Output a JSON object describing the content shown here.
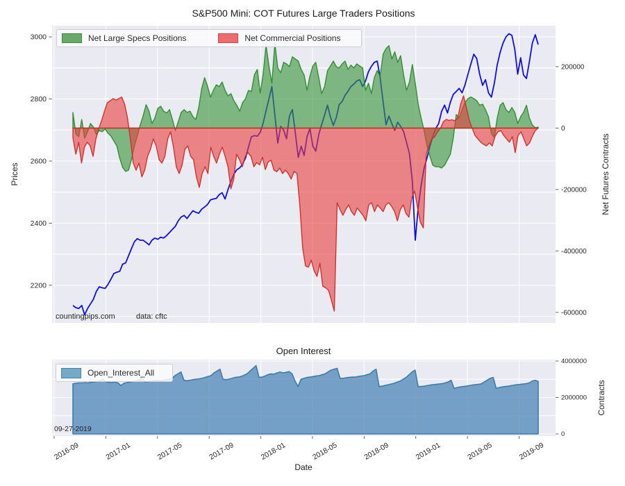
{
  "colors": {
    "plot_bg": "#eaeaf2",
    "grid": "#ffffff",
    "text": "#262626",
    "price_line": "#0d0de3",
    "specs_fill": "rgba(60,150,60,0.62)",
    "specs_edge": "rgba(44,138,44,0.95)",
    "specs_swatch": "#69a869",
    "specs_swatch_edge": "#3c8c3c",
    "comm_fill": "rgba(232,62,62,0.60)",
    "comm_edge": "rgba(206,44,36,0.95)",
    "comm_swatch": "#ee6b6b",
    "comm_swatch_edge": "#cc4848",
    "oi_fill": "rgba(70,130,180,0.72)",
    "oi_edge": "#3d7ca8",
    "oi_swatch": "#74a9c8",
    "oi_swatch_edge": "#4881a8"
  },
  "x_axis": {
    "label": "Date",
    "tick_labels": [
      "2016-09",
      "2017-01",
      "2017-05",
      "2017-09",
      "2018-01",
      "2018-05",
      "2018-09",
      "2019-01",
      "2019-05",
      "2019-09"
    ]
  },
  "chart_data": [
    {
      "type": "line+area",
      "title": "S&P500 Mini: COT Futures Large Traders Positions",
      "ylabel_left": "Prices",
      "ylabel_right": "Net Futures Contracts",
      "watermark": "countingpips.com",
      "source_note": "data: cftc",
      "grid": true,
      "legend_position": "upper left",
      "left_ticks": [
        {
          "v": 3000,
          "label": "3000"
        },
        {
          "v": 2800,
          "label": "2800"
        },
        {
          "v": 2600,
          "label": "2600"
        },
        {
          "v": 2400,
          "label": "2400"
        },
        {
          "v": 2200,
          "label": "2200"
        }
      ],
      "right_ticks": [
        {
          "v": 200000,
          "label": "200000"
        },
        {
          "v": 0,
          "label": "0"
        },
        {
          "v": -200000,
          "label": "-200000"
        },
        {
          "v": -400000,
          "label": "-400000"
        },
        {
          "v": -600000,
          "label": "-600000"
        }
      ],
      "yaxis_left_range": [
        2079,
        3036
      ],
      "yaxis_right_range": [
        -634000,
        333300
      ],
      "legend": [
        {
          "label": "Net Large Specs Positions"
        },
        {
          "label": "Net Commercial Positions"
        }
      ],
      "series": [
        {
          "name": "Prices",
          "type": "line",
          "axis": "left",
          "values": [
            2135,
            2128,
            2125,
            2135,
            2105,
            2125,
            2140,
            2155,
            2180,
            2195,
            2192,
            2190,
            2203,
            2220,
            2238,
            2242,
            2245,
            2268,
            2272,
            2295,
            2318,
            2340,
            2350,
            2345,
            2345,
            2338,
            2330,
            2345,
            2352,
            2348,
            2355,
            2352,
            2360,
            2370,
            2380,
            2390,
            2408,
            2420,
            2425,
            2415,
            2428,
            2440,
            2435,
            2432,
            2445,
            2452,
            2460,
            2475,
            2478,
            2480,
            2492,
            2498,
            2478,
            2508,
            2535,
            2558,
            2572,
            2578,
            2590,
            2610,
            2645,
            2678,
            2682,
            2680,
            2692,
            2722,
            2762,
            2800,
            2840,
            2748,
            2658,
            2712,
            2700,
            2672,
            2745,
            2766,
            2690,
            2612,
            2648,
            2618,
            2678,
            2705,
            2648,
            2632,
            2685,
            2718,
            2748,
            2780,
            2742,
            2715,
            2740,
            2782,
            2792,
            2812,
            2825,
            2840,
            2848,
            2858,
            2862,
            2840,
            2858,
            2888,
            2905,
            2918,
            2922,
            2869,
            2790,
            2717,
            2745,
            2720,
            2699,
            2725,
            2712,
            2695,
            2660,
            2624,
            2534,
            2345,
            2450,
            2521,
            2577,
            2610,
            2648,
            2680,
            2705,
            2721,
            2760,
            2780,
            2755,
            2790,
            2815,
            2824,
            2834,
            2820,
            2845,
            2880,
            2913,
            2944,
            2930,
            2880,
            2844,
            2862,
            2820,
            2806,
            2850,
            2910,
            2950,
            2980,
            3000,
            3010,
            3005,
            2960,
            2880,
            2933,
            2877,
            2866,
            2920,
            2980,
            3007,
            2975
          ]
        },
        {
          "name": "Net Large Specs Positions",
          "type": "area",
          "axis": "right",
          "values": [
            51000,
            -19000,
            -28000,
            28000,
            -33000,
            -12000,
            15000,
            3000,
            -21000,
            -8000,
            -12000,
            -3000,
            -17000,
            -26000,
            -42000,
            -58000,
            -98000,
            -128000,
            -141000,
            -137000,
            -103000,
            -58000,
            -26000,
            10000,
            40000,
            76000,
            55000,
            15000,
            33000,
            64000,
            71000,
            55000,
            49000,
            60000,
            28000,
            -8000,
            21000,
            51000,
            60000,
            51000,
            55000,
            37000,
            28000,
            67000,
            128000,
            164000,
            137000,
            101000,
            123000,
            141000,
            135000,
            150000,
            123000,
            105000,
            112000,
            89000,
            74000,
            55000,
            83000,
            96000,
            123000,
            119000,
            173000,
            191000,
            114000,
            175000,
            270000,
            202000,
            146000,
            277000,
            196000,
            180000,
            214000,
            209000,
            200000,
            232000,
            225000,
            218000,
            191000,
            173000,
            123000,
            169000,
            202000,
            214000,
            164000,
            112000,
            135000,
            187000,
            202000,
            218000,
            200000,
            196000,
            209000,
            218000,
            191000,
            205000,
            196000,
            209000,
            202000,
            196000,
            123000,
            146000,
            112000,
            164000,
            187000,
            169000,
            241000,
            259000,
            268000,
            225000,
            248000,
            214000,
            236000,
            173000,
            123000,
            150000,
            207000,
            146000,
            78000,
            33000,
            -8000,
            -58000,
            -92000,
            -121000,
            -126000,
            -126000,
            -130000,
            -121000,
            -103000,
            -85000,
            -31000,
            44000,
            33000,
            60000,
            83000,
            96000,
            101000,
            96000,
            89000,
            74000,
            78000,
            60000,
            37000,
            -17000,
            -31000,
            33000,
            74000,
            83000,
            60000,
            51000,
            67000,
            51000,
            15000,
            37000,
            51000,
            74000,
            33000,
            10000,
            1000,
            3000
          ]
        },
        {
          "name": "Net Commercial Positions",
          "type": "area",
          "axis": "right",
          "values": [
            -31000,
            -85000,
            -46000,
            -114000,
            -62000,
            -46000,
            -58000,
            -92000,
            -35000,
            -3000,
            25000,
            55000,
            83000,
            89000,
            96000,
            91000,
            96000,
            101000,
            78000,
            33000,
            -35000,
            -114000,
            -137000,
            -114000,
            -159000,
            -137000,
            -92000,
            -69000,
            -35000,
            -58000,
            -103000,
            -114000,
            -92000,
            -35000,
            -12000,
            -62000,
            -126000,
            -148000,
            -121000,
            -69000,
            -58000,
            -92000,
            -103000,
            -159000,
            -193000,
            -148000,
            -126000,
            -148000,
            -62000,
            -92000,
            -114000,
            -85000,
            -62000,
            -92000,
            -126000,
            -198000,
            -166000,
            -85000,
            -103000,
            -126000,
            -92000,
            -80000,
            -92000,
            -126000,
            -112000,
            -120000,
            -95000,
            -135000,
            -110000,
            -105000,
            -137000,
            -142000,
            -130000,
            -148000,
            -137000,
            -148000,
            -166000,
            -141000,
            -148000,
            -250000,
            -392000,
            -449000,
            -453000,
            -430000,
            -465000,
            -483000,
            -440000,
            -515000,
            -520000,
            -528000,
            -560000,
            -596000,
            -243000,
            -265000,
            -284000,
            -265000,
            -250000,
            -272000,
            -284000,
            -260000,
            -272000,
            -284000,
            -302000,
            -250000,
            -243000,
            -272000,
            -250000,
            -260000,
            -272000,
            -250000,
            -243000,
            -255000,
            -272000,
            -302000,
            -265000,
            -250000,
            -278000,
            -290000,
            -227000,
            -205000,
            -260000,
            -307000,
            -325000,
            -85000,
            -58000,
            -35000,
            -28000,
            -12000,
            0,
            21000,
            28000,
            25000,
            27000,
            24000,
            33000,
            78000,
            105000,
            67000,
            25000,
            0,
            -24000,
            -35000,
            -46000,
            -53000,
            -58000,
            -48000,
            -58000,
            -26000,
            -12000,
            -8000,
            -24000,
            -35000,
            -46000,
            -28000,
            -80000,
            -24000,
            -12000,
            -35000,
            -58000,
            -48000,
            -26000,
            -8000,
            0
          ]
        }
      ]
    },
    {
      "type": "area",
      "title": "Open Interest",
      "ylabel_right": "Contracts",
      "last_report_date": "09-27-2019",
      "grid": true,
      "legend_position": "upper left",
      "right_ticks": [
        {
          "v": 4000000,
          "label": "4000000"
        },
        {
          "v": 2000000,
          "label": "2000000"
        },
        {
          "v": 0,
          "label": "0"
        }
      ],
      "yaxis_right_range": [
        -114000,
        4076000
      ],
      "legend": [
        {
          "label": "Open_Interest_All"
        }
      ],
      "series": [
        {
          "name": "Open_Interest_All",
          "type": "area",
          "axis": "right",
          "values": [
            2750000,
            2780000,
            2800000,
            2800000,
            2820000,
            2800000,
            2830000,
            2850000,
            2880000,
            2920000,
            3000000,
            2850000,
            2830000,
            2820000,
            2850000,
            2800000,
            2650000,
            2780000,
            2820000,
            2850000,
            2880000,
            2900000,
            2950000,
            3100000,
            2850000,
            2880000,
            2900000,
            2920000,
            2950000,
            2920000,
            2950000,
            2980000,
            3000000,
            3050000,
            3200000,
            3300000,
            3400000,
            2950000,
            2920000,
            2950000,
            2980000,
            3000000,
            3020000,
            3050000,
            3100000,
            3150000,
            3200000,
            3350000,
            3450000,
            3550000,
            3000000,
            2980000,
            3000000,
            3050000,
            3100000,
            3120000,
            3150000,
            3220000,
            3300000,
            3450000,
            3600000,
            3750000,
            3100000,
            3120000,
            3180000,
            3250000,
            3300000,
            3280000,
            3350000,
            3400000,
            3350000,
            3380000,
            3420000,
            3300000,
            2900000,
            2600000,
            3000000,
            3050000,
            3100000,
            3120000,
            3150000,
            3180000,
            3200000,
            3250000,
            3300000,
            3400000,
            3500000,
            3550000,
            3600000,
            3050000,
            3050000,
            3080000,
            3100000,
            3120000,
            3120000,
            3150000,
            3180000,
            3200000,
            3250000,
            3300000,
            3450000,
            3550000,
            2600000,
            2620000,
            2660000,
            2700000,
            2740000,
            2780000,
            2840000,
            2900000,
            3000000,
            3100000,
            3250000,
            3400000,
            3500000,
            2600000,
            2600000,
            2620000,
            2650000,
            2680000,
            2700000,
            2720000,
            2740000,
            2760000,
            2800000,
            2850000,
            2950000,
            2500000,
            2550000,
            2580000,
            2600000,
            2620000,
            2650000,
            2680000,
            2700000,
            2720000,
            2750000,
            2850000,
            2950000,
            3050000,
            3100000,
            2500000,
            2550000,
            2580000,
            2600000,
            2620000,
            2650000,
            2680000,
            2700000,
            2720000,
            2740000,
            2760000,
            2800000,
            2900000,
            2950000,
            2880000
          ]
        }
      ]
    }
  ]
}
